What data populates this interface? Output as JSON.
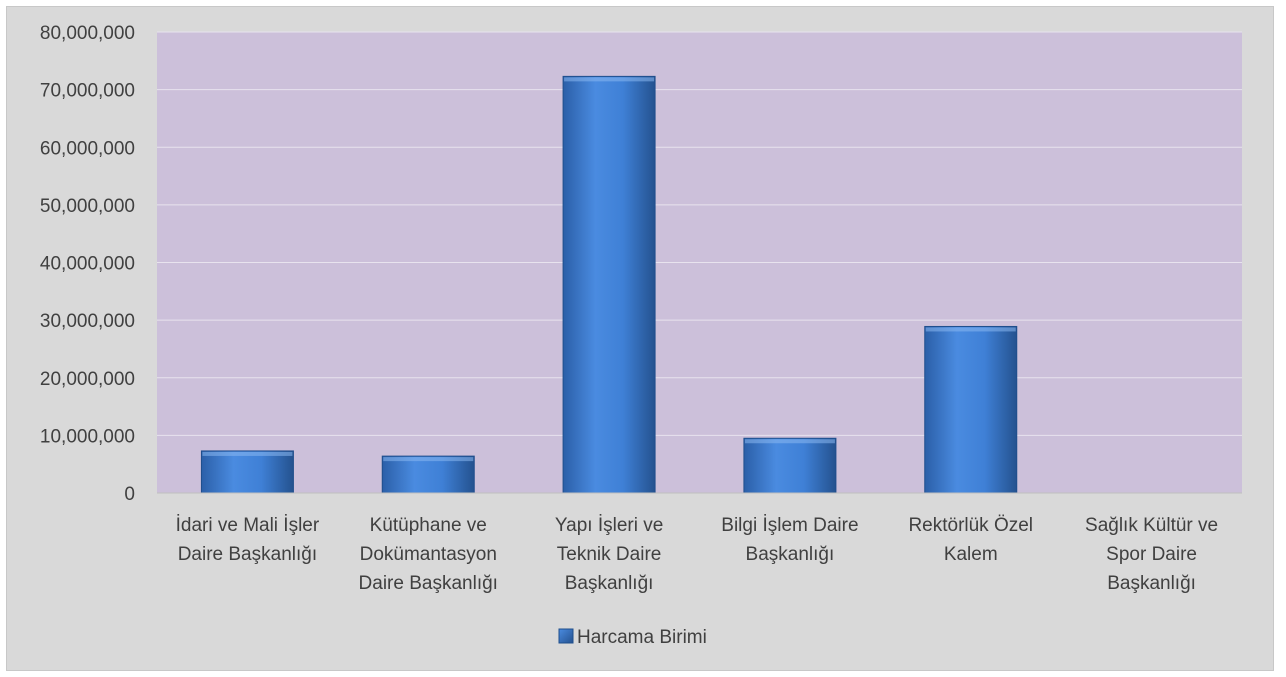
{
  "chart_data": {
    "type": "bar",
    "categories": [
      [
        "İdari ve Mali İşler",
        "Daire Başkanlığı"
      ],
      [
        "Kütüphane ve",
        "Dokümantasyon",
        "Daire Başkanlığı"
      ],
      [
        "Yapı İşleri ve",
        "Teknik Daire",
        "Başkanlığı"
      ],
      [
        "Bilgi İşlem Daire",
        "Başkanlığı"
      ],
      [
        "Rektörlük Özel",
        "Kalem"
      ],
      [
        "Sağlık Kültür ve",
        "Spor Daire",
        "Başkanlığı"
      ]
    ],
    "series": [
      {
        "name": "Harcama Birimi",
        "values": [
          7300000,
          6400000,
          72300000,
          9500000,
          28900000,
          0
        ]
      }
    ],
    "ylim": [
      0,
      80000000
    ],
    "yticks": [
      0,
      10000000,
      20000000,
      30000000,
      40000000,
      50000000,
      60000000,
      70000000,
      80000000
    ],
    "ytick_labels": [
      "0",
      "10,000,000",
      "20,000,000",
      "30,000,000",
      "40,000,000",
      "50,000,000",
      "60,000,000",
      "70,000,000",
      "80,000,000"
    ],
    "grid": true,
    "legend": "bottom",
    "colors": {
      "plot_background": "#ccc0da",
      "chart_background": "#d9d9d9",
      "bar_fill": "#3a78c8",
      "bar_edge": "#1f4e8c",
      "gridline": "#e8e3ee",
      "text": "#404040"
    }
  }
}
